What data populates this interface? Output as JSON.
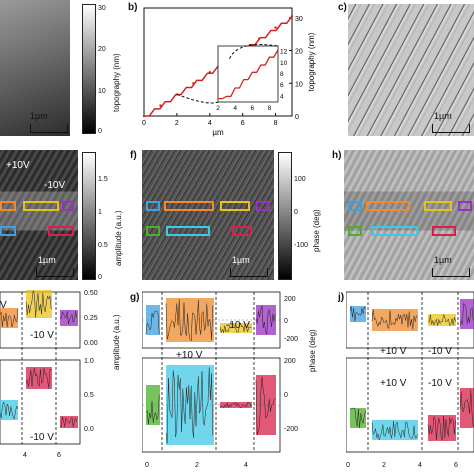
{
  "panels": {
    "b": {
      "label": "b)"
    },
    "c": {
      "label": "c)"
    },
    "f": {
      "label": "f)"
    },
    "h": {
      "label": "h)"
    },
    "g": {
      "label": "g)"
    },
    "j": {
      "label": "j)"
    }
  },
  "colorbars": {
    "topography": {
      "label": "topography",
      "ticks": [
        "30",
        "20",
        "10",
        "0"
      ]
    },
    "amplitude": {
      "label": "amplitude (a.u.)",
      "ticks": [
        "1.5",
        "1",
        "0.5",
        "0"
      ]
    },
    "phase": {
      "label": "phase (deg)",
      "ticks": [
        "100",
        "0",
        "-100"
      ]
    }
  },
  "scalebars": {
    "text": "1µm"
  },
  "annotations": {
    "plus10": "+10V",
    "minus10": "-10V",
    "g_plus10": "+10 V",
    "g_minus10": "-10 V",
    "j_plus10_top": "+10 V",
    "j_minus10_top": "-10 V",
    "j_plus10_bot": "+10 V",
    "j_minus10_bot": "-10 V",
    "left_plus10": "+10V",
    "left_minus10_top": "-10 V",
    "left_minus10_bot": "-10 V"
  },
  "profile_axes": {
    "left_top_ticks": [
      "0.50",
      "0.25",
      "0.00"
    ],
    "left_top_ylabel": "amplitude (a.u.)",
    "left_bot_ticks": [
      "1.0",
      "0.5",
      "0.0"
    ],
    "left_x_ticks": [
      "4",
      "6"
    ],
    "g_right_ticks_top": [
      "200",
      "0",
      "-200"
    ],
    "g_right_ticks_bot": [
      "200",
      "0",
      "-200"
    ],
    "g_ylabel": "phase (deg)",
    "g_x_ticks": [
      "0",
      "2",
      "4"
    ],
    "j_x_ticks": [
      "0",
      "2",
      "4",
      "6"
    ]
  },
  "chart_data": {
    "type": "line",
    "title": "",
    "xlabel": "µm",
    "ylabel": "topography (nm)",
    "xlim": [
      0,
      9
    ],
    "ylim": [
      0,
      33
    ],
    "x_ticks": [
      0,
      2,
      4,
      6,
      8
    ],
    "y_ticks": [
      0,
      10,
      20,
      30
    ],
    "series": [
      {
        "x": [
          0,
          1,
          2,
          3,
          4,
          5,
          6,
          7,
          8,
          9
        ],
        "values": [
          0,
          3.2,
          6.6,
          10.0,
          13.4,
          16.8,
          20.2,
          23.6,
          27.0,
          30.5
        ]
      }
    ],
    "inset": {
      "xlim": [
        2,
        9
      ],
      "ylim": [
        3,
        13
      ],
      "x_ticks": [
        2,
        4,
        6,
        8
      ],
      "y_ticks": [
        4,
        6,
        8,
        10,
        12
      ],
      "x": [
        2,
        3,
        4,
        5,
        6,
        7,
        8,
        9
      ],
      "values": [
        3.6,
        4.0,
        5.5,
        7.0,
        8.3,
        9.6,
        11.0,
        12.3
      ]
    },
    "color": "#d62020"
  },
  "colors": {
    "orange": "#f08a2c",
    "yellow": "#e8c21c",
    "purple": "#9a2fc0",
    "blue": "#3ea0e0",
    "red": "#d8204a",
    "green": "#4caf2a",
    "cyan": "#40c8e6"
  }
}
